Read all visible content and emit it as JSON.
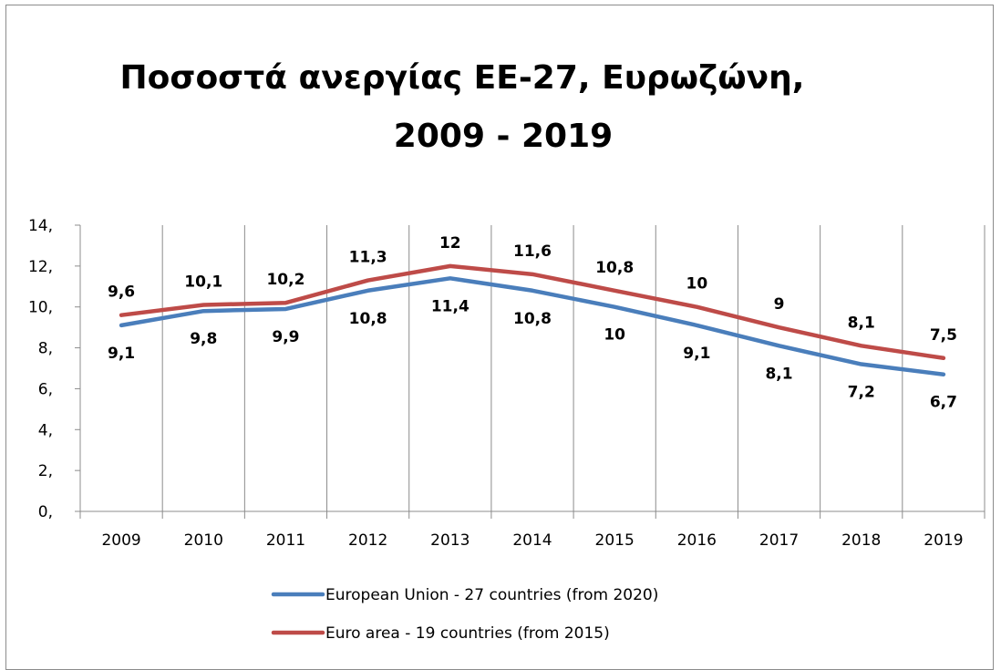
{
  "chart_data": {
    "type": "line",
    "title_lines": [
      "Ποσοστά ανεργίας ΕΕ-27, Ευρωζώνη,",
      "2009 - 2019"
    ],
    "categories": [
      "2009",
      "2010",
      "2011",
      "2012",
      "2013",
      "2014",
      "2015",
      "2016",
      "2017",
      "2018",
      "2019"
    ],
    "y_ticks": [
      "0,",
      "2,",
      "4,",
      "6,",
      "8,",
      "10,",
      "12,",
      "14,"
    ],
    "ylim": [
      0,
      14
    ],
    "grid": "vertical",
    "legend_position": "bottom",
    "series": [
      {
        "name": "European Union - 27 countries (from 2020)",
        "color": "#4a7ebb",
        "values": [
          9.1,
          9.8,
          9.9,
          10.8,
          11.4,
          10.8,
          10,
          9.1,
          8.1,
          7.2,
          6.7
        ],
        "labels": [
          "9,1",
          "9,8",
          "9,9",
          "10,8",
          "11,4",
          "10,8",
          "10",
          "9,1",
          "8,1",
          "7,2",
          "6,7"
        ],
        "label_side": "below"
      },
      {
        "name": "Euro area - 19 countries  (from 2015)",
        "color": "#be4b48",
        "values": [
          9.6,
          10.1,
          10.2,
          11.3,
          12,
          11.6,
          10.8,
          10,
          9,
          8.1,
          7.5
        ],
        "labels": [
          "9,6",
          "10,1",
          "10,2",
          "11,3",
          "12",
          "11,6",
          "10,8",
          "10",
          "9",
          "8,1",
          "7,5"
        ],
        "label_side": "above"
      }
    ]
  }
}
